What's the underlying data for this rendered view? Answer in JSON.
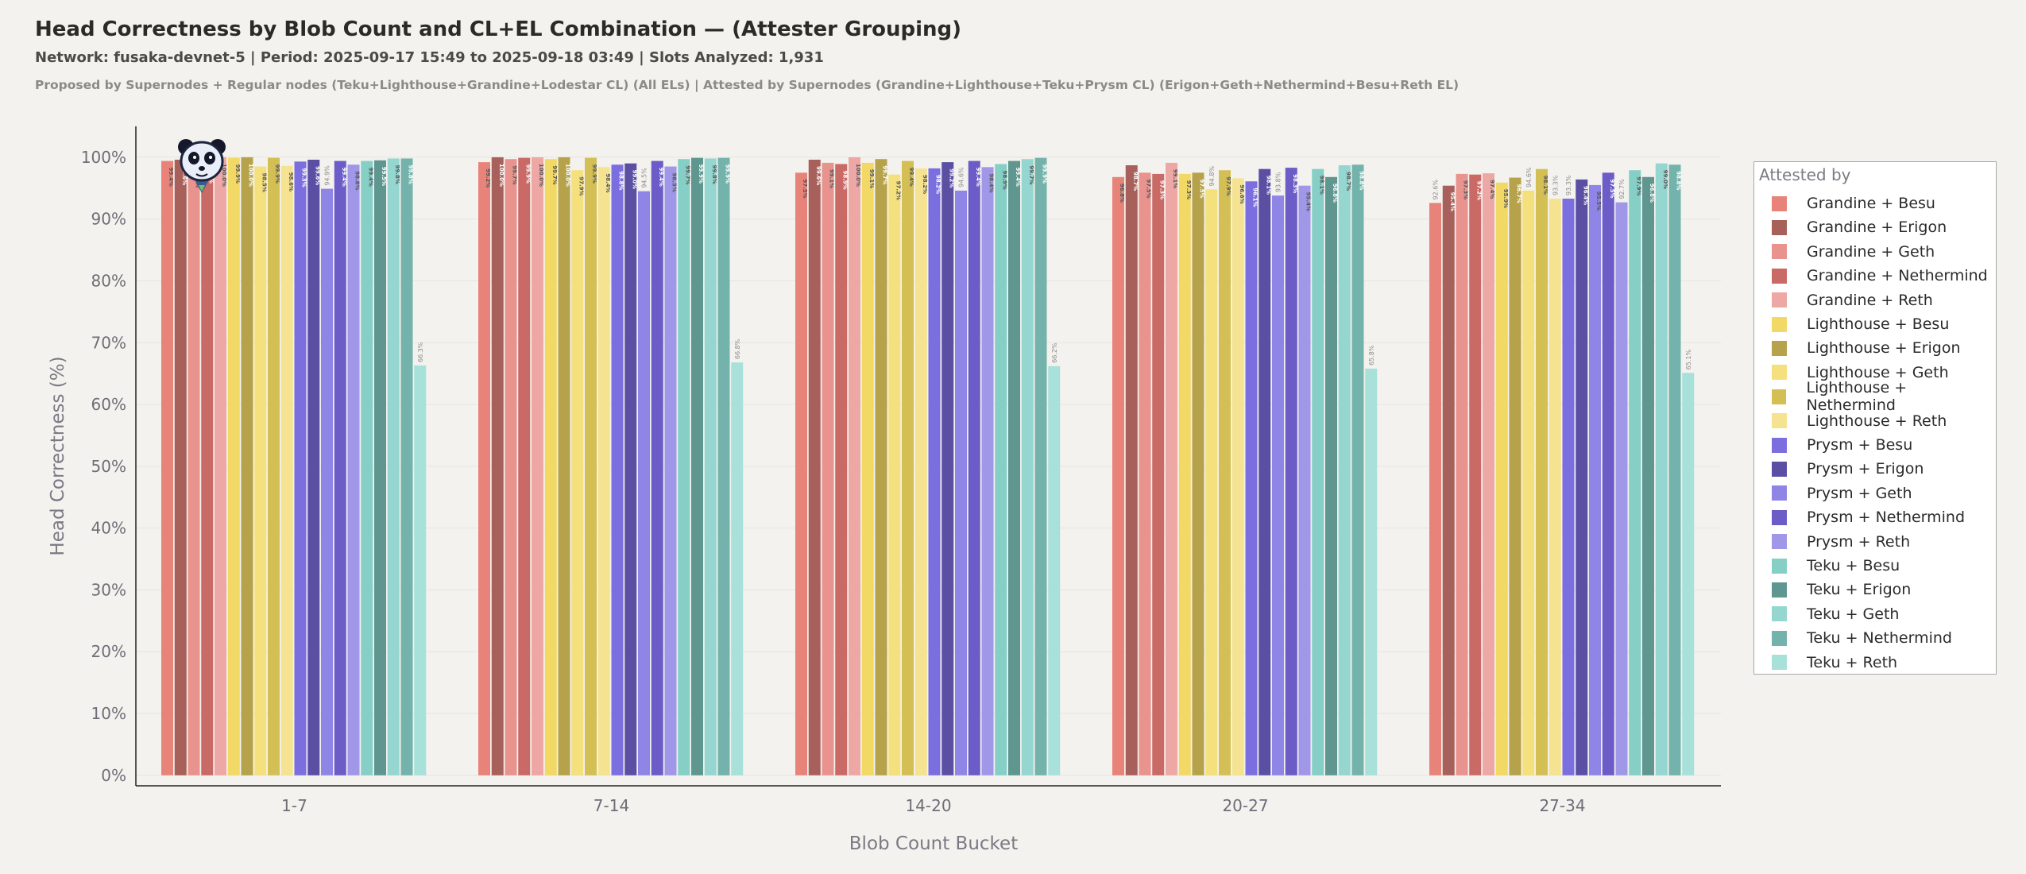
{
  "header": {
    "title": "Head Correctness by Blob Count and CL+EL Combination — (Attester Grouping)",
    "subtitle": "Network: fusaka-devnet-5  |  Period: 2025-09-17 15:49 to 2025-09-18 03:49  |  Slots Analyzed: 1,931",
    "description": "Proposed by Supernodes + Regular nodes (Teku+Lighthouse+Grandine+Lodestar CL) (All ELs)  |  Attested by Supernodes (Grandine+Lighthouse+Teku+Prysm CL) (Erigon+Geth+Nethermind+Besu+Reth EL)"
  },
  "logo": {
    "icon": "panda-logo"
  },
  "chart_data": {
    "type": "bar",
    "xlabel": "Blob Count Bucket",
    "ylabel": "Head Correctness (%)",
    "ylim": [
      -1.7,
      105
    ],
    "yticks": [
      0,
      10,
      20,
      30,
      40,
      50,
      60,
      70,
      80,
      90,
      100
    ],
    "ytick_labels": [
      "0%",
      "10%",
      "20%",
      "30%",
      "40%",
      "50%",
      "60%",
      "70%",
      "80%",
      "90%",
      "100%"
    ],
    "grid": "horizontal",
    "legend_title": "Attested by",
    "legend_position": "right",
    "categories": [
      "1-7",
      "7-14",
      "14-20",
      "20-27",
      "27-34"
    ],
    "series": [
      {
        "name": "Grandine + Besu",
        "color": "#e8837a",
        "values": [
          99.4,
          99.2,
          97.5,
          96.8,
          92.6
        ]
      },
      {
        "name": "Grandine + Erigon",
        "color": "#a8605a",
        "values": [
          99.6,
          100.0,
          99.6,
          98.7,
          95.4
        ]
      },
      {
        "name": "Grandine + Geth",
        "color": "#e8938e",
        "values": [
          99.2,
          99.7,
          99.1,
          97.5,
          97.3
        ]
      },
      {
        "name": "Grandine + Nethermind",
        "color": "#c96a66",
        "values": [
          99.9,
          99.9,
          98.9,
          97.3,
          97.2
        ]
      },
      {
        "name": "Grandine + Reth",
        "color": "#eda7a4",
        "values": [
          100.0,
          100.0,
          100.0,
          99.1,
          97.4
        ]
      },
      {
        "name": "Lighthouse + Besu",
        "color": "#f2d865",
        "values": [
          99.9,
          99.7,
          99.1,
          97.3,
          95.9
        ]
      },
      {
        "name": "Lighthouse + Erigon",
        "color": "#b5a24a",
        "values": [
          100.0,
          100.0,
          99.7,
          97.5,
          96.7
        ]
      },
      {
        "name": "Lighthouse + Geth",
        "color": "#f5e07e",
        "values": [
          98.5,
          97.9,
          97.2,
          94.8,
          94.6
        ]
      },
      {
        "name": "Lighthouse + Nethermind",
        "color": "#d4bf55",
        "values": [
          99.9,
          99.9,
          99.4,
          97.9,
          98.1
        ]
      },
      {
        "name": "Lighthouse + Reth",
        "color": "#f5e391",
        "values": [
          98.6,
          98.4,
          98.2,
          96.6,
          93.3
        ]
      },
      {
        "name": "Prysm + Besu",
        "color": "#7b6fe0",
        "values": [
          99.3,
          98.8,
          98.2,
          96.1,
          93.3
        ]
      },
      {
        "name": "Prysm + Erigon",
        "color": "#5a4fa3",
        "values": [
          99.6,
          99.0,
          99.2,
          98.1,
          96.4
        ]
      },
      {
        "name": "Prysm + Geth",
        "color": "#8f85e6",
        "values": [
          94.9,
          94.5,
          94.6,
          93.8,
          95.5
        ]
      },
      {
        "name": "Prysm + Nethermind",
        "color": "#6b5cc7",
        "values": [
          99.4,
          99.4,
          99.4,
          98.3,
          97.5
        ]
      },
      {
        "name": "Prysm + Reth",
        "color": "#a097e8",
        "values": [
          98.8,
          98.5,
          98.4,
          95.4,
          92.7
        ]
      },
      {
        "name": "Teku + Besu",
        "color": "#85cfc7",
        "values": [
          99.4,
          99.7,
          98.9,
          98.1,
          97.9
        ]
      },
      {
        "name": "Teku + Erigon",
        "color": "#5f9690",
        "values": [
          99.5,
          99.9,
          99.4,
          96.8,
          96.8
        ]
      },
      {
        "name": "Teku + Geth",
        "color": "#96d6d0",
        "values": [
          99.8,
          99.8,
          99.7,
          98.7,
          99.0
        ]
      },
      {
        "name": "Teku + Nethermind",
        "color": "#74b3ab",
        "values": [
          99.8,
          99.9,
          99.9,
          98.8,
          98.8
        ]
      },
      {
        "name": "Teku + Reth",
        "color": "#a8e0da",
        "values": [
          66.3,
          66.8,
          66.2,
          65.8,
          65.1
        ]
      }
    ]
  }
}
